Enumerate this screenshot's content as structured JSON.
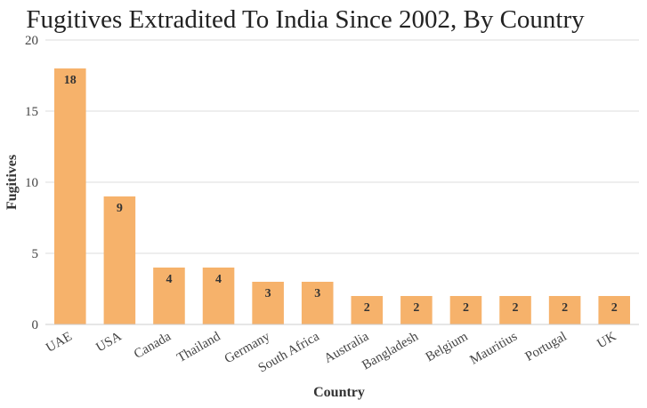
{
  "chart_data": {
    "type": "bar",
    "title": "Fugitives Extradited To India Since 2002, By Country",
    "xlabel": "Country",
    "ylabel": "Fugitives",
    "ylim": [
      0,
      20
    ],
    "yticks": [
      0,
      5,
      10,
      15,
      20
    ],
    "grid": true,
    "bar_color": "#f6b26b",
    "categories": [
      "UAE",
      "USA",
      "Canada",
      "Thailand",
      "Germany",
      "South Africa",
      "Australia",
      "Bangladesh",
      "Belgium",
      "Mauritius",
      "Portugal",
      "UK"
    ],
    "values": [
      18,
      9,
      4,
      4,
      3,
      3,
      2,
      2,
      2,
      2,
      2,
      2
    ]
  }
}
